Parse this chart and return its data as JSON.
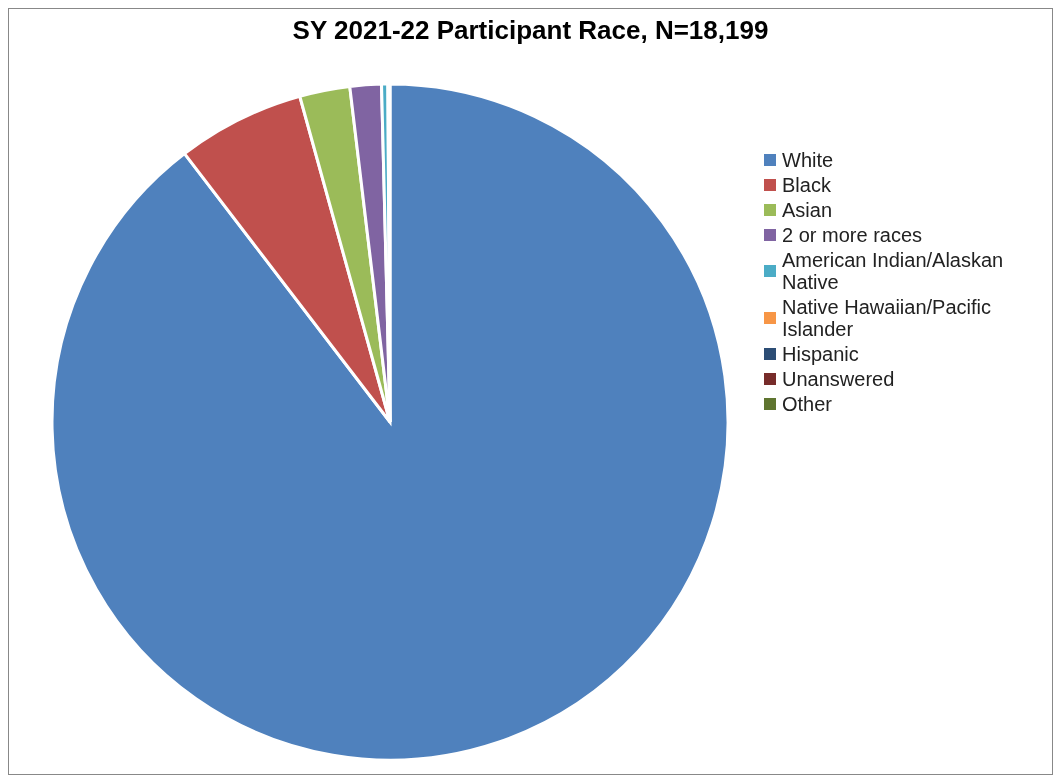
{
  "chart_data": {
    "type": "pie",
    "title": "SY 2021-22 Participant Race, N=18,199",
    "categories": [
      "White",
      "Black",
      "Asian",
      "2 or more races",
      "American Indian/Alaskan Native",
      "Native Hawaiian/Pacific Islander",
      "Hispanic",
      "Unanswered",
      "Other"
    ],
    "values": [
      89.6,
      6.1,
      2.4,
      1.5,
      0.3,
      0.1,
      0,
      0,
      0
    ],
    "colors": [
      "#4f81bd",
      "#c0504d",
      "#9bbb59",
      "#8064a2",
      "#4bacc6",
      "#f79646",
      "#2c4d75",
      "#772c2a",
      "#5f7530"
    ],
    "legend": "right"
  }
}
